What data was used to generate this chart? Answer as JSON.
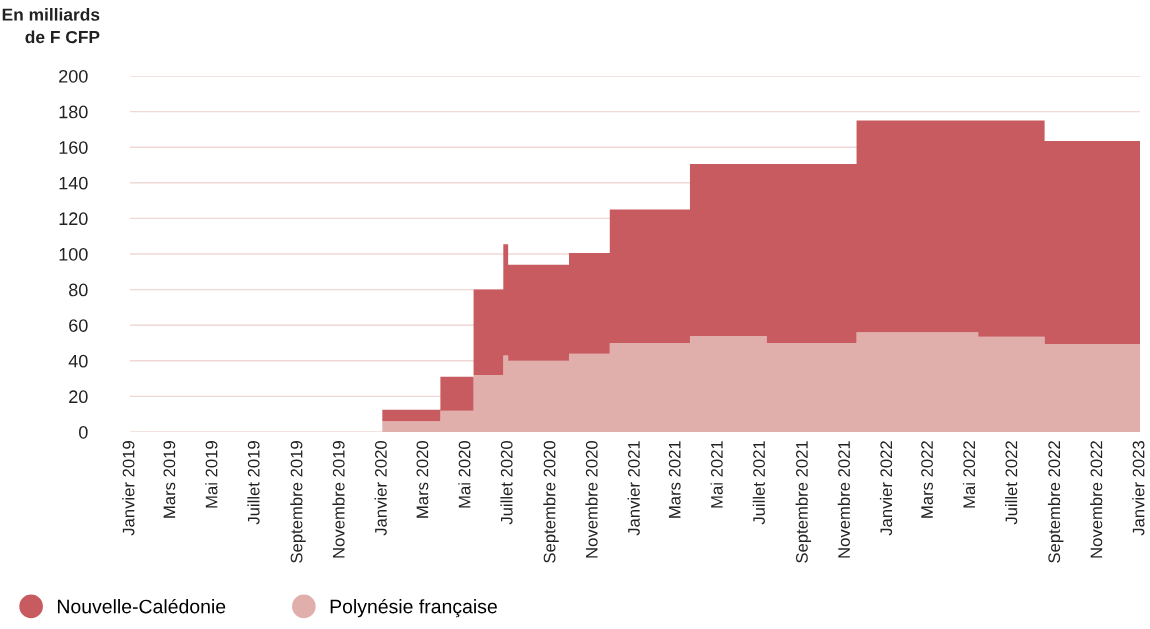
{
  "chart_data": {
    "type": "area",
    "stacked": true,
    "ylabel": "En milliards\nde F CFP",
    "x": [
      "2020-01-01",
      "2020-01-01",
      "2020-03-25",
      "2020-03-25",
      "2020-05-12",
      "2020-05-12",
      "2020-06-24",
      "2020-06-24",
      "2020-07-01",
      "2020-07-01",
      "2020-09-27",
      "2020-09-27",
      "2020-11-25",
      "2020-11-25",
      "2021-03-21",
      "2021-03-21",
      "2021-07-10",
      "2021-07-10",
      "2021-11-17",
      "2021-11-17",
      "2022-05-12",
      "2022-05-12",
      "2022-08-16",
      "2022-08-16",
      "2023-01-01"
    ],
    "series": [
      {
        "name": "Polynésie française",
        "color": "#e1afab",
        "values": [
          0,
          6,
          6,
          12,
          12,
          32,
          32,
          43,
          43,
          40,
          40,
          44,
          44,
          50,
          50,
          54,
          54,
          50,
          50,
          56,
          56,
          53.5,
          53.5,
          49.5,
          49.5
        ]
      },
      {
        "name": "Nouvelle-Calédonie",
        "color": "#c75b60",
        "values": [
          0,
          6.5,
          6.5,
          19,
          19,
          48,
          48,
          62.5,
          62.5,
          54,
          54,
          56.5,
          56.5,
          75,
          75,
          96.5,
          96.5,
          100.5,
          100.5,
          119,
          119,
          121.5,
          121.5,
          114,
          114
        ]
      }
    ],
    "xlim": [
      "2019-01-01",
      "2023-01-01"
    ],
    "xticks": [
      {
        "value": "2019-01-01",
        "label": "Janvier 2019"
      },
      {
        "value": "2019-03-01",
        "label": "Mars 2019"
      },
      {
        "value": "2019-05-01",
        "label": "Mai 2019"
      },
      {
        "value": "2019-07-01",
        "label": "Juillet 2019"
      },
      {
        "value": "2019-09-01",
        "label": "Septembre 2019"
      },
      {
        "value": "2019-11-01",
        "label": "Novembre 2019"
      },
      {
        "value": "2020-01-01",
        "label": "Janvier 2020"
      },
      {
        "value": "2020-03-01",
        "label": "Mars 2020"
      },
      {
        "value": "2020-05-01",
        "label": "Mai 2020"
      },
      {
        "value": "2020-07-01",
        "label": "Juillet 2020"
      },
      {
        "value": "2020-09-01",
        "label": "Septembre 2020"
      },
      {
        "value": "2020-11-01",
        "label": "Novembre 2020"
      },
      {
        "value": "2021-01-01",
        "label": "Janvier 2021"
      },
      {
        "value": "2021-03-01",
        "label": "Mars 2021"
      },
      {
        "value": "2021-05-01",
        "label": "Mai 2021"
      },
      {
        "value": "2021-07-01",
        "label": "Juillet 2021"
      },
      {
        "value": "2021-09-01",
        "label": "Septembre 2021"
      },
      {
        "value": "2021-11-01",
        "label": "Novembre 2021"
      },
      {
        "value": "2022-01-01",
        "label": "Janvier 2022"
      },
      {
        "value": "2022-03-01",
        "label": "Mars 2022"
      },
      {
        "value": "2022-05-01",
        "label": "Mai 2022"
      },
      {
        "value": "2022-07-01",
        "label": "Juillet 2022"
      },
      {
        "value": "2022-09-01",
        "label": "Septembre 2022"
      },
      {
        "value": "2022-11-01",
        "label": "Novembre 2022"
      },
      {
        "value": "2023-01-01",
        "label": "Janvier 2023"
      }
    ],
    "ylim": [
      0,
      200
    ],
    "yticks": [
      0,
      20,
      40,
      60,
      80,
      100,
      120,
      140,
      160,
      180,
      200
    ],
    "grid": "y",
    "legend": "bottom left"
  }
}
